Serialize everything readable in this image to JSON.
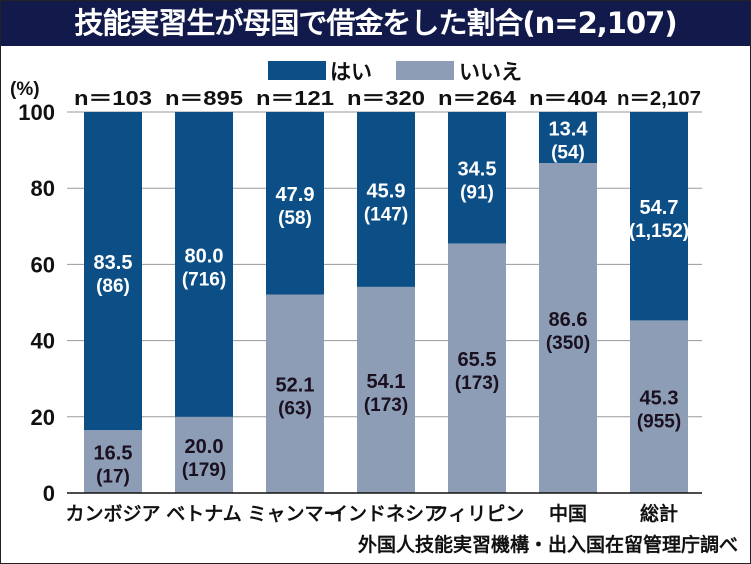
{
  "title": "技能実習生が母国で借金をした割合(n=2,107)",
  "source": "外国人技能実習機構・出入国在留管理庁調べ",
  "colors": {
    "yes": "#0b4f86",
    "no": "#8c9db5",
    "titlebar": "#121a4c",
    "grid": "#9a9a9a"
  },
  "chart_data": {
    "type": "bar",
    "stacked": true,
    "title": "技能実習生が母国で借金をした割合(n=2,107)",
    "ylabel": "(%)",
    "ylim": [
      0,
      100
    ],
    "yticks": [
      "0",
      "20",
      "40",
      "60",
      "80",
      "100"
    ],
    "grid": true,
    "legend_position": "top-center",
    "categories": [
      "カンボジア",
      "ベトナム",
      "ミャンマー",
      "インドネシア",
      "フィリピン",
      "中国",
      "総計"
    ],
    "n_labels": [
      "n＝103",
      "n＝895",
      "n＝121",
      "n＝320",
      "n＝264",
      "n＝404",
      "n＝2,107"
    ],
    "series": [
      {
        "name": "いいえ",
        "values": [
          16.5,
          20.0,
          52.1,
          54.1,
          65.5,
          86.6,
          45.3
        ],
        "labels": [
          "16.5",
          "20.0",
          "52.1",
          "54.1",
          "65.5",
          "86.6",
          "45.3"
        ],
        "counts": [
          "(17)",
          "(179)",
          "(63)",
          "(173)",
          "(173)",
          "(350)",
          "(955)"
        ]
      },
      {
        "name": "はい",
        "values": [
          83.5,
          80.0,
          47.9,
          45.9,
          34.5,
          13.4,
          54.7
        ],
        "labels": [
          "83.5",
          "80.0",
          "47.9",
          "45.9",
          "34.5",
          "13.4",
          "54.7"
        ],
        "counts": [
          "(86)",
          "(716)",
          "(58)",
          "(147)",
          "(91)",
          "(54)",
          "(1,152)"
        ]
      }
    ],
    "legend": [
      "はい",
      "いいえ"
    ]
  }
}
